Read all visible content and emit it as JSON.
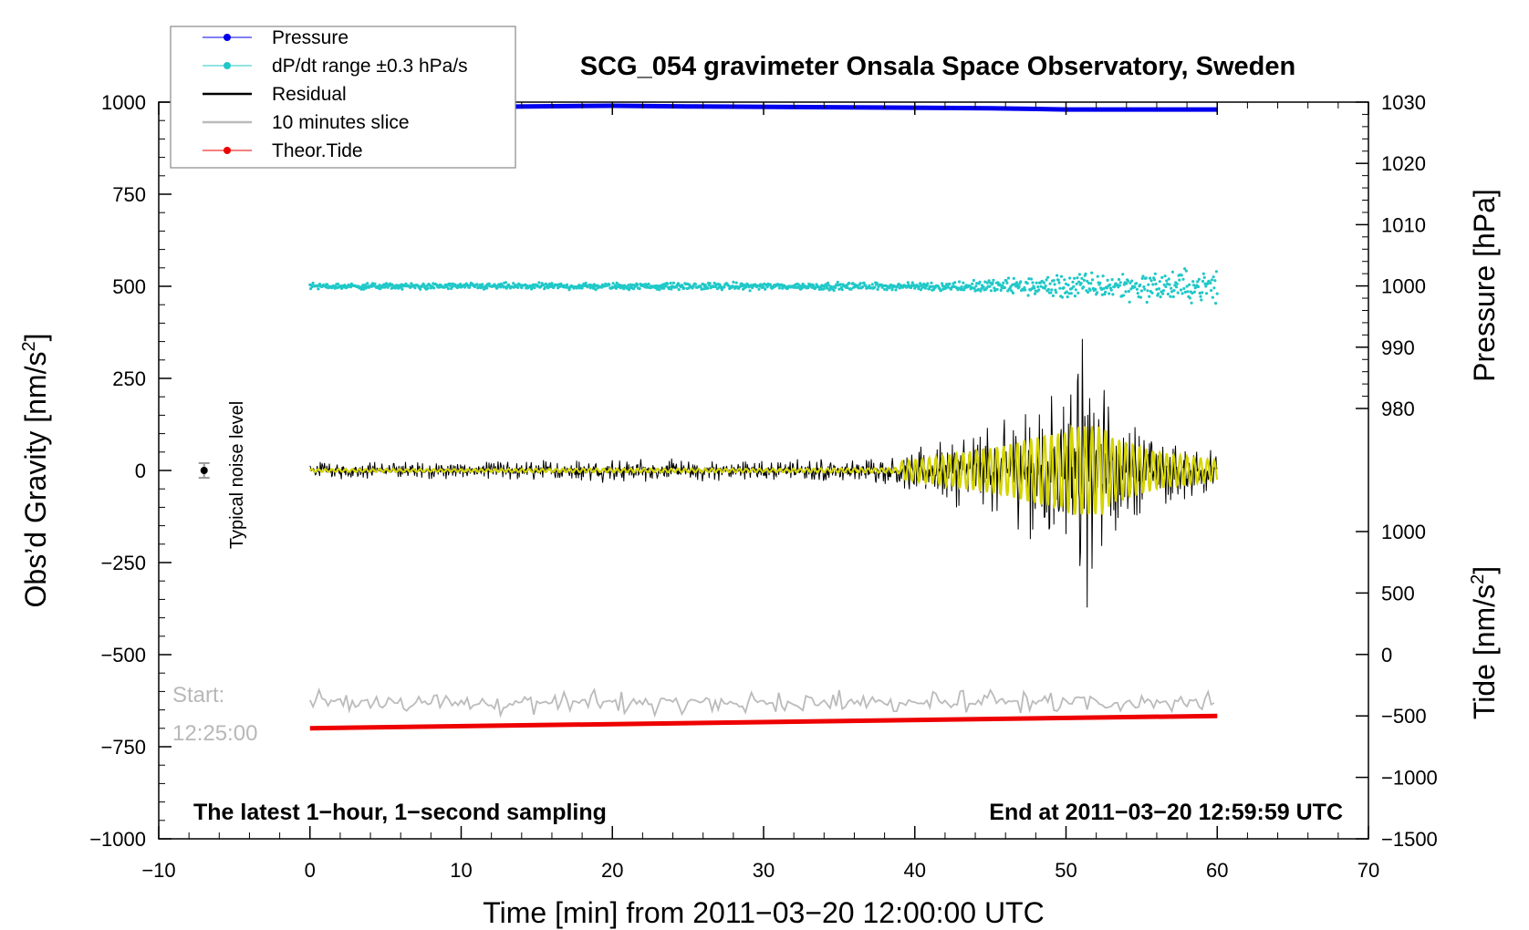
{
  "chart_data": {
    "type": "line",
    "title": "SCG_054 gravimeter Onsala Space Observatory, Sweden",
    "xlabel": "Time [min] from 2011−03−20 12:00:00 UTC",
    "ylabel_left": "Obs’d Gravity [nm/s",
    "ylabel_left_sup": "2",
    "ylabel_left_end": "]",
    "ylabel_right_pressure": "Pressure [hPa]",
    "ylabel_right_tide": "Tide [nm/s",
    "ylabel_right_tide_sup": "2",
    "ylabel_right_tide_end": "]",
    "xlim": [
      -10,
      70
    ],
    "ylim_left": [
      -1000,
      1000
    ],
    "pressure_lim": [
      980,
      1030
    ],
    "tide_lim": [
      -1500,
      1000
    ],
    "x_ticks": [
      "−10",
      "0",
      "10",
      "20",
      "30",
      "40",
      "50",
      "60",
      "70"
    ],
    "x_tick_values": [
      -10,
      0,
      10,
      20,
      30,
      40,
      50,
      60,
      70
    ],
    "left_ticks": [
      "1000",
      "750",
      "500",
      "250",
      "0",
      "−250",
      "−500",
      "−750",
      "−1000"
    ],
    "left_tick_values": [
      1000,
      750,
      500,
      250,
      0,
      -250,
      -500,
      -750,
      -1000
    ],
    "pressure_ticks": [
      "1030",
      "1020",
      "1010",
      "1000",
      "990",
      "980"
    ],
    "pressure_tick_values": [
      1030,
      1020,
      1010,
      1000,
      990,
      980
    ],
    "tide_ticks": [
      "1000",
      "500",
      "0",
      "−500",
      "−1000",
      "−1500"
    ],
    "tide_tick_values": [
      1000,
      500,
      0,
      -500,
      -1000,
      -1500
    ],
    "legend": [
      {
        "label": "Pressure",
        "color": "#0000ee",
        "marker": true
      },
      {
        "label": "dP/dt range ±0.3 hPa/s",
        "color": "#20c8c8",
        "marker": true
      },
      {
        "label": "Residual",
        "color": "#000000",
        "marker": false
      },
      {
        "label": "10 minutes slice",
        "color": "#bbbbbb",
        "marker": false
      },
      {
        "label": "Theor.Tide",
        "color": "#ee0000",
        "marker": true
      }
    ],
    "legend_position": "top-left",
    "series": [
      {
        "name": "Pressure",
        "axis": "pressure",
        "x": [
          0,
          20,
          25,
          45,
          50,
          60
        ],
        "values": [
          1029.0,
          1029.4,
          1029.3,
          1029.0,
          1028.8,
          1028.8
        ]
      },
      {
        "name": "Theor.Tide",
        "axis": "tide",
        "x": [
          0,
          60
        ],
        "values": [
          -600,
          -500
        ]
      },
      {
        "name": "dP/dt range ±0.3 hPa/s",
        "axis": "left",
        "center": 500,
        "spread_x": [
          0,
          40,
          45,
          50,
          60
        ],
        "spread_y": [
          8,
          10,
          18,
          35,
          45
        ]
      },
      {
        "name": "Residual",
        "axis": "left",
        "center": 0,
        "envelope_x": [
          0,
          10,
          20,
          30,
          38,
          42,
          46,
          48,
          50,
          51,
          51.5,
          53,
          56,
          60
        ],
        "envelope_y": [
          25,
          25,
          35,
          30,
          40,
          90,
          150,
          200,
          230,
          400,
          380,
          200,
          110,
          60
        ]
      },
      {
        "name": "10 minutes slice",
        "axis": "left",
        "center": -630,
        "amplitude": 35,
        "x_range": [
          0,
          60
        ]
      }
    ],
    "noise_marker": {
      "x": -7,
      "y": 0,
      "error": 20,
      "label": "Typical noise level"
    },
    "annotations": {
      "start_label": "Start:",
      "start_time": "12:25:00",
      "bottom_left": "The latest 1−hour, 1−second sampling",
      "bottom_right": "End at 2011−03−20 12:59:59 UTC"
    }
  }
}
